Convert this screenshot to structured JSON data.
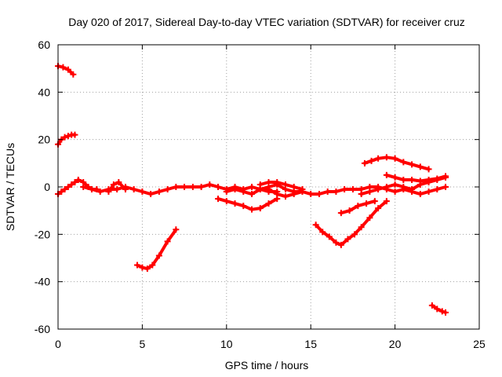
{
  "chart_data": {
    "type": "scatter",
    "title": "Day 020 of 2017, Sidereal Day-to-day VTEC variation (SDTVAR) for receiver cruz",
    "xlabel": "GPS time / hours",
    "ylabel": "SDTVAR / TECUs",
    "xlim": [
      0,
      25
    ],
    "ylim": [
      -60,
      60
    ],
    "xticks": [
      0,
      5,
      10,
      15,
      20,
      25
    ],
    "yticks": [
      -60,
      -40,
      -20,
      0,
      20,
      40,
      60
    ],
    "grid": true,
    "series_color": "#ff0000",
    "series": [
      {
        "name": "arc-top-left",
        "x": [
          0.0,
          0.3,
          0.6,
          0.9
        ],
        "y": [
          51,
          50.5,
          49.5,
          47.5
        ]
      },
      {
        "name": "arc-upper-left",
        "x": [
          0.0,
          0.2,
          0.4,
          0.6,
          0.8,
          1.0
        ],
        "y": [
          18,
          20,
          21,
          21.5,
          22,
          22
        ]
      },
      {
        "name": "arc-near-zero-start",
        "x": [
          0.0,
          0.2,
          0.4,
          0.6,
          0.8,
          1.0,
          1.2,
          1.5,
          1.8,
          2.0,
          2.3
        ],
        "y": [
          -3,
          -2,
          -1,
          0,
          1,
          2,
          3,
          2,
          0,
          -1,
          -1
        ]
      },
      {
        "name": "baseline",
        "x": [
          1.5,
          2.0,
          2.5,
          3.0,
          3.5,
          4.0,
          4.5,
          5.0,
          5.5,
          6.0,
          6.5,
          7.0,
          7.5,
          8.0,
          8.5,
          9.0,
          9.5,
          10.0,
          10.5,
          11.0,
          11.5,
          12.0,
          12.5,
          13.0,
          13.5,
          14.0,
          14.5,
          15.0,
          15.5,
          16.0,
          16.5,
          17.0,
          17.5,
          18.0,
          18.5,
          19.0,
          19.5,
          20.0,
          20.5,
          21.0,
          21.5,
          22.0,
          22.5,
          23.0
        ],
        "y": [
          0,
          -1,
          -2,
          -1,
          -1,
          0,
          -1,
          -2,
          -3,
          -2,
          -1,
          0,
          0,
          0,
          0,
          1,
          0,
          -1,
          0,
          -1,
          0,
          -1,
          0,
          1,
          -1,
          -2,
          -2,
          -3,
          -3,
          -2,
          -2,
          -1,
          -1,
          -1,
          0,
          0,
          -1,
          -2,
          -1,
          -2,
          -3,
          -2,
          -1,
          0
        ]
      },
      {
        "name": "hump-3h",
        "x": [
          3.0,
          3.3,
          3.6,
          4.0
        ],
        "y": [
          -2,
          1,
          2,
          -1
        ]
      },
      {
        "name": "arc-10-12",
        "x": [
          9.5,
          10.0,
          10.5,
          11.0,
          11.5,
          12.0,
          12.5,
          13.0
        ],
        "y": [
          -5,
          -6,
          -7,
          -8,
          -9.5,
          -9,
          -7,
          -5
        ]
      },
      {
        "name": "arc-10-13-low",
        "x": [
          10.0,
          10.5,
          11.0,
          11.5,
          12.0,
          12.5,
          13.0
        ],
        "y": [
          -2,
          -1,
          -2,
          -3,
          -1,
          -2,
          -2
        ]
      },
      {
        "name": "hump-12-14",
        "x": [
          12.0,
          12.5,
          13.0,
          13.5,
          14.0,
          14.5
        ],
        "y": [
          1,
          2,
          2,
          1,
          0,
          -1
        ]
      },
      {
        "name": "dip-12-14",
        "x": [
          12.5,
          13.0,
          13.5,
          14.0,
          14.5
        ],
        "y": [
          -1,
          -3,
          -4,
          -3,
          -2
        ]
      },
      {
        "name": "arc-5h-dip",
        "x": [
          4.7,
          5.0,
          5.3,
          5.6,
          6.0,
          6.5,
          7.0
        ],
        "y": [
          -33,
          -34,
          -34.5,
          -33,
          -29,
          -23,
          -18
        ]
      },
      {
        "name": "arc-16-19-v",
        "x": [
          15.3,
          15.7,
          16.1,
          16.5,
          16.8,
          17.2,
          17.6,
          18.0,
          18.5,
          19.0,
          19.5
        ],
        "y": [
          -16,
          -19,
          -21,
          -23.5,
          -24.5,
          -22,
          -20,
          -17,
          -13,
          -9,
          -6
        ]
      },
      {
        "name": "arc-16-19-rise",
        "x": [
          16.8,
          17.3,
          17.8,
          18.3,
          18.8
        ],
        "y": [
          -11,
          -10,
          -8,
          -7,
          -6
        ]
      },
      {
        "name": "arc-18-22-high",
        "x": [
          18.2,
          18.6,
          19.0,
          19.5,
          20.0,
          20.5,
          21.0,
          21.5,
          22.0
        ],
        "y": [
          10,
          11,
          12,
          12.5,
          12,
          10.5,
          9.5,
          8.5,
          7.5
        ]
      },
      {
        "name": "arc-19-23-mid",
        "x": [
          19.5,
          20.0,
          20.5,
          21.0,
          21.5,
          22.0,
          22.5,
          23.0
        ],
        "y": [
          5,
          4,
          3,
          3,
          2.5,
          3,
          3.5,
          4.5
        ]
      },
      {
        "name": "arc-19-23-low",
        "x": [
          18.0,
          18.5,
          19.0,
          19.5,
          20.0,
          20.5,
          21.0,
          21.5,
          22.0,
          22.5,
          23.0
        ],
        "y": [
          -3,
          -2,
          -1,
          0,
          1,
          0,
          -1,
          1,
          2,
          3,
          4
        ]
      },
      {
        "name": "arc-bottom-right",
        "x": [
          22.2,
          22.5,
          22.8,
          23.0
        ],
        "y": [
          -50,
          -51.5,
          -52.5,
          -53
        ]
      }
    ]
  }
}
